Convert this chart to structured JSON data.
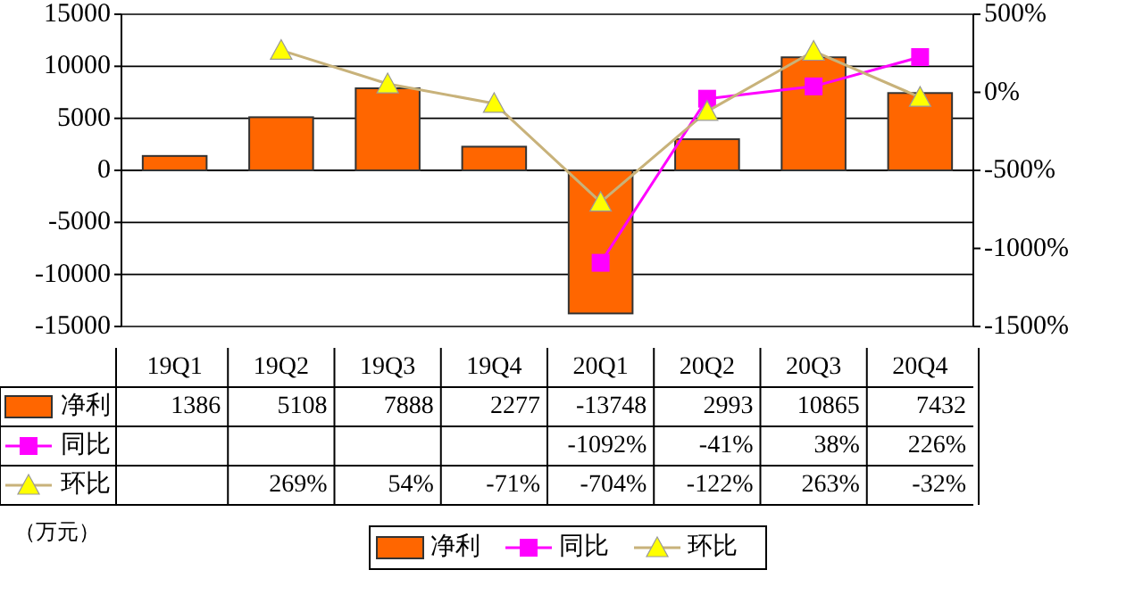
{
  "chart_data": {
    "type": "bar",
    "categories": [
      "19Q1",
      "19Q2",
      "19Q3",
      "19Q4",
      "20Q1",
      "20Q2",
      "20Q3",
      "20Q4"
    ],
    "ylim": [
      -15000,
      15000
    ],
    "yticks": [
      -15000,
      -10000,
      -5000,
      0,
      5000,
      10000,
      15000
    ],
    "y2lim": [
      -1500,
      500
    ],
    "y2ticks": [
      {
        "value": -1500,
        "label": "-1500%"
      },
      {
        "value": -1000,
        "label": "-1000%"
      },
      {
        "value": -500,
        "label": "-500%"
      },
      {
        "value": 0,
        "label": "0%"
      },
      {
        "value": 500,
        "label": "500%"
      }
    ],
    "grid": "y",
    "legend": "bottom",
    "data_labels": true,
    "series": [
      {
        "name": "净利",
        "type": "bar",
        "color": "#ff6600",
        "values": [
          1386,
          5108,
          7888,
          2277,
          -13748,
          2993,
          10865,
          7432
        ]
      },
      {
        "name": "同比",
        "type": "line",
        "axis": "y2",
        "color": "#ff00ff",
        "marker": "square",
        "values": [
          null,
          null,
          null,
          null,
          -1092,
          -41,
          38,
          226
        ],
        "value_labels": [
          null,
          null,
          null,
          null,
          "-1092%",
          "-41%",
          "38%",
          "226%"
        ]
      },
      {
        "name": "环比",
        "type": "line",
        "axis": "y2",
        "color": "#ffff00",
        "marker": "triangle",
        "values": [
          null,
          269,
          54,
          -71,
          -704,
          -122,
          263,
          -32
        ],
        "value_labels": [
          null,
          "269%",
          "54%",
          "-71%",
          "-704%",
          "-122%",
          "263%",
          "-32%"
        ]
      }
    ],
    "annotations": [
      "（万元）"
    ]
  }
}
